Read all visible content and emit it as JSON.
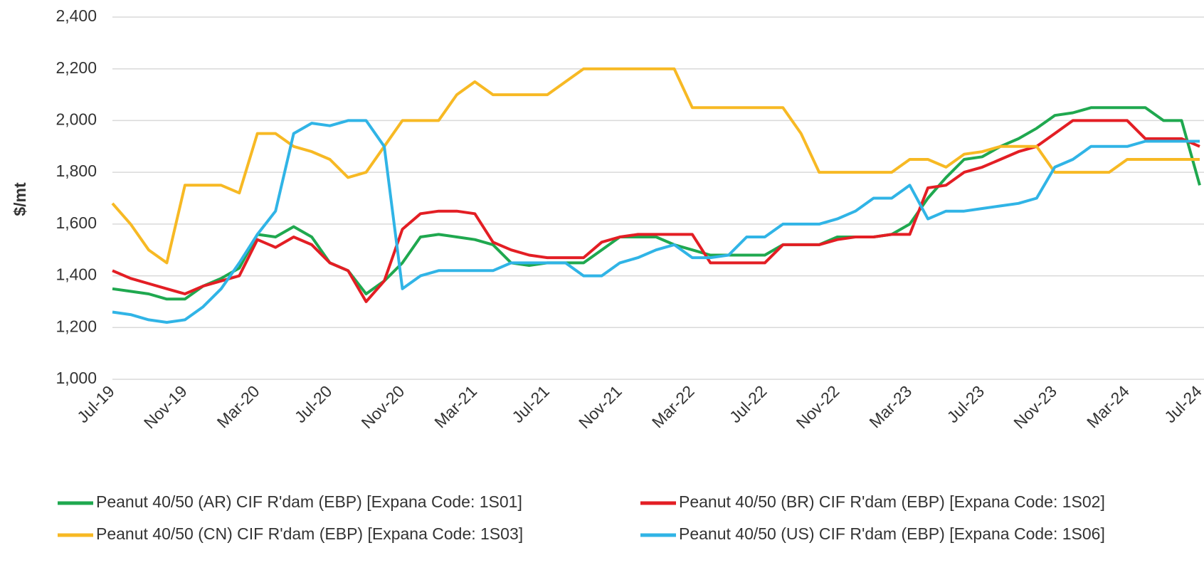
{
  "chart_data": {
    "type": "line",
    "y_label": "$/mt",
    "categories": [
      "Jul-19",
      null,
      null,
      null,
      "Nov-19",
      null,
      null,
      null,
      "Mar-20",
      null,
      null,
      null,
      "Jul-20",
      null,
      null,
      null,
      "Nov-20",
      null,
      null,
      null,
      "Mar-21",
      null,
      null,
      null,
      "Jul-21",
      null,
      null,
      null,
      "Nov-21",
      null,
      null,
      null,
      "Mar-22",
      null,
      null,
      null,
      "Jul-22",
      null,
      null,
      null,
      "Nov-22",
      null,
      null,
      null,
      "Mar-23",
      null,
      null,
      null,
      "Jul-23",
      null,
      null,
      null,
      "Nov-23",
      null,
      null,
      null,
      "Mar-24",
      null,
      null,
      null,
      "Jul-24"
    ],
    "series": [
      {
        "name": "Peanut 40/50 (AR) CIF R'dam (EBP) [Expana Code: 1S01]",
        "color": "#1fa84f",
        "values": [
          1350,
          1340,
          1330,
          1310,
          1310,
          1360,
          1390,
          1430,
          1560,
          1550,
          1590,
          1550,
          1450,
          1420,
          1330,
          1380,
          1450,
          1550,
          1560,
          1550,
          1540,
          1520,
          1450,
          1440,
          1450,
          1450,
          1450,
          1500,
          1550,
          1550,
          1550,
          1520,
          1500,
          1480,
          1480,
          1480,
          1480,
          1520,
          1520,
          1520,
          1550,
          1550,
          1550,
          1560,
          1600,
          1700,
          1780,
          1850,
          1860,
          1900,
          1930,
          1970,
          2020,
          2030,
          2050,
          2050,
          2050,
          2050,
          2000,
          2000,
          1750
        ]
      },
      {
        "name": "Peanut 40/50 (BR) CIF R'dam (EBP) [Expana Code: 1S02]",
        "color": "#e31e24",
        "values": [
          1420,
          1390,
          1370,
          1350,
          1330,
          1360,
          1380,
          1400,
          1540,
          1510,
          1550,
          1520,
          1450,
          1420,
          1300,
          1380,
          1580,
          1640,
          1650,
          1650,
          1640,
          1530,
          1500,
          1480,
          1470,
          1470,
          1470,
          1530,
          1550,
          1560,
          1560,
          1560,
          1560,
          1450,
          1450,
          1450,
          1450,
          1520,
          1520,
          1520,
          1540,
          1550,
          1550,
          1560,
          1560,
          1740,
          1750,
          1800,
          1820,
          1850,
          1880,
          1900,
          1950,
          2000,
          2000,
          2000,
          2000,
          1930,
          1930,
          1930,
          1900
        ]
      },
      {
        "name": "Peanut 40/50 (CN) CIF R'dam (EBP) [Expana Code: 1S03]",
        "color": "#f7b924",
        "values": [
          1680,
          1600,
          1500,
          1450,
          1750,
          1750,
          1750,
          1720,
          1950,
          1950,
          1900,
          1880,
          1850,
          1780,
          1800,
          1900,
          2000,
          2000,
          2000,
          2100,
          2150,
          2100,
          2100,
          2100,
          2100,
          2150,
          2200,
          2200,
          2200,
          2200,
          2200,
          2200,
          2050,
          2050,
          2050,
          2050,
          2050,
          2050,
          1950,
          1800,
          1800,
          1800,
          1800,
          1800,
          1850,
          1850,
          1820,
          1870,
          1880,
          1900,
          1900,
          1900,
          1800,
          1800,
          1800,
          1800,
          1850,
          1850,
          1850,
          1850,
          1850
        ]
      },
      {
        "name": "Peanut 40/50 (US) CIF R'dam (EBP) [Expana Code: 1S06]",
        "color": "#30b4e6",
        "values": [
          1260,
          1250,
          1230,
          1220,
          1230,
          1280,
          1350,
          1450,
          1560,
          1650,
          1950,
          1990,
          1980,
          2000,
          2000,
          1900,
          1350,
          1400,
          1420,
          1420,
          1420,
          1420,
          1450,
          1450,
          1450,
          1450,
          1400,
          1400,
          1450,
          1470,
          1500,
          1520,
          1470,
          1470,
          1480,
          1550,
          1550,
          1600,
          1600,
          1600,
          1620,
          1650,
          1700,
          1700,
          1750,
          1620,
          1650,
          1650,
          1660,
          1670,
          1680,
          1700,
          1820,
          1850,
          1900,
          1900,
          1900,
          1920,
          1920,
          1920,
          1920
        ]
      }
    ],
    "ylim": [
      1000,
      2400
    ],
    "yticks": [
      {
        "value": 1000,
        "label": "1,000"
      },
      {
        "value": 1200,
        "label": "1,200"
      },
      {
        "value": 1400,
        "label": "1,400"
      },
      {
        "value": 1600,
        "label": "1,600"
      },
      {
        "value": 1800,
        "label": "1,800"
      },
      {
        "value": 2000,
        "label": "2,000"
      },
      {
        "value": 2200,
        "label": "2,200"
      },
      {
        "value": 2400,
        "label": "2,400"
      }
    ],
    "grid": true
  }
}
